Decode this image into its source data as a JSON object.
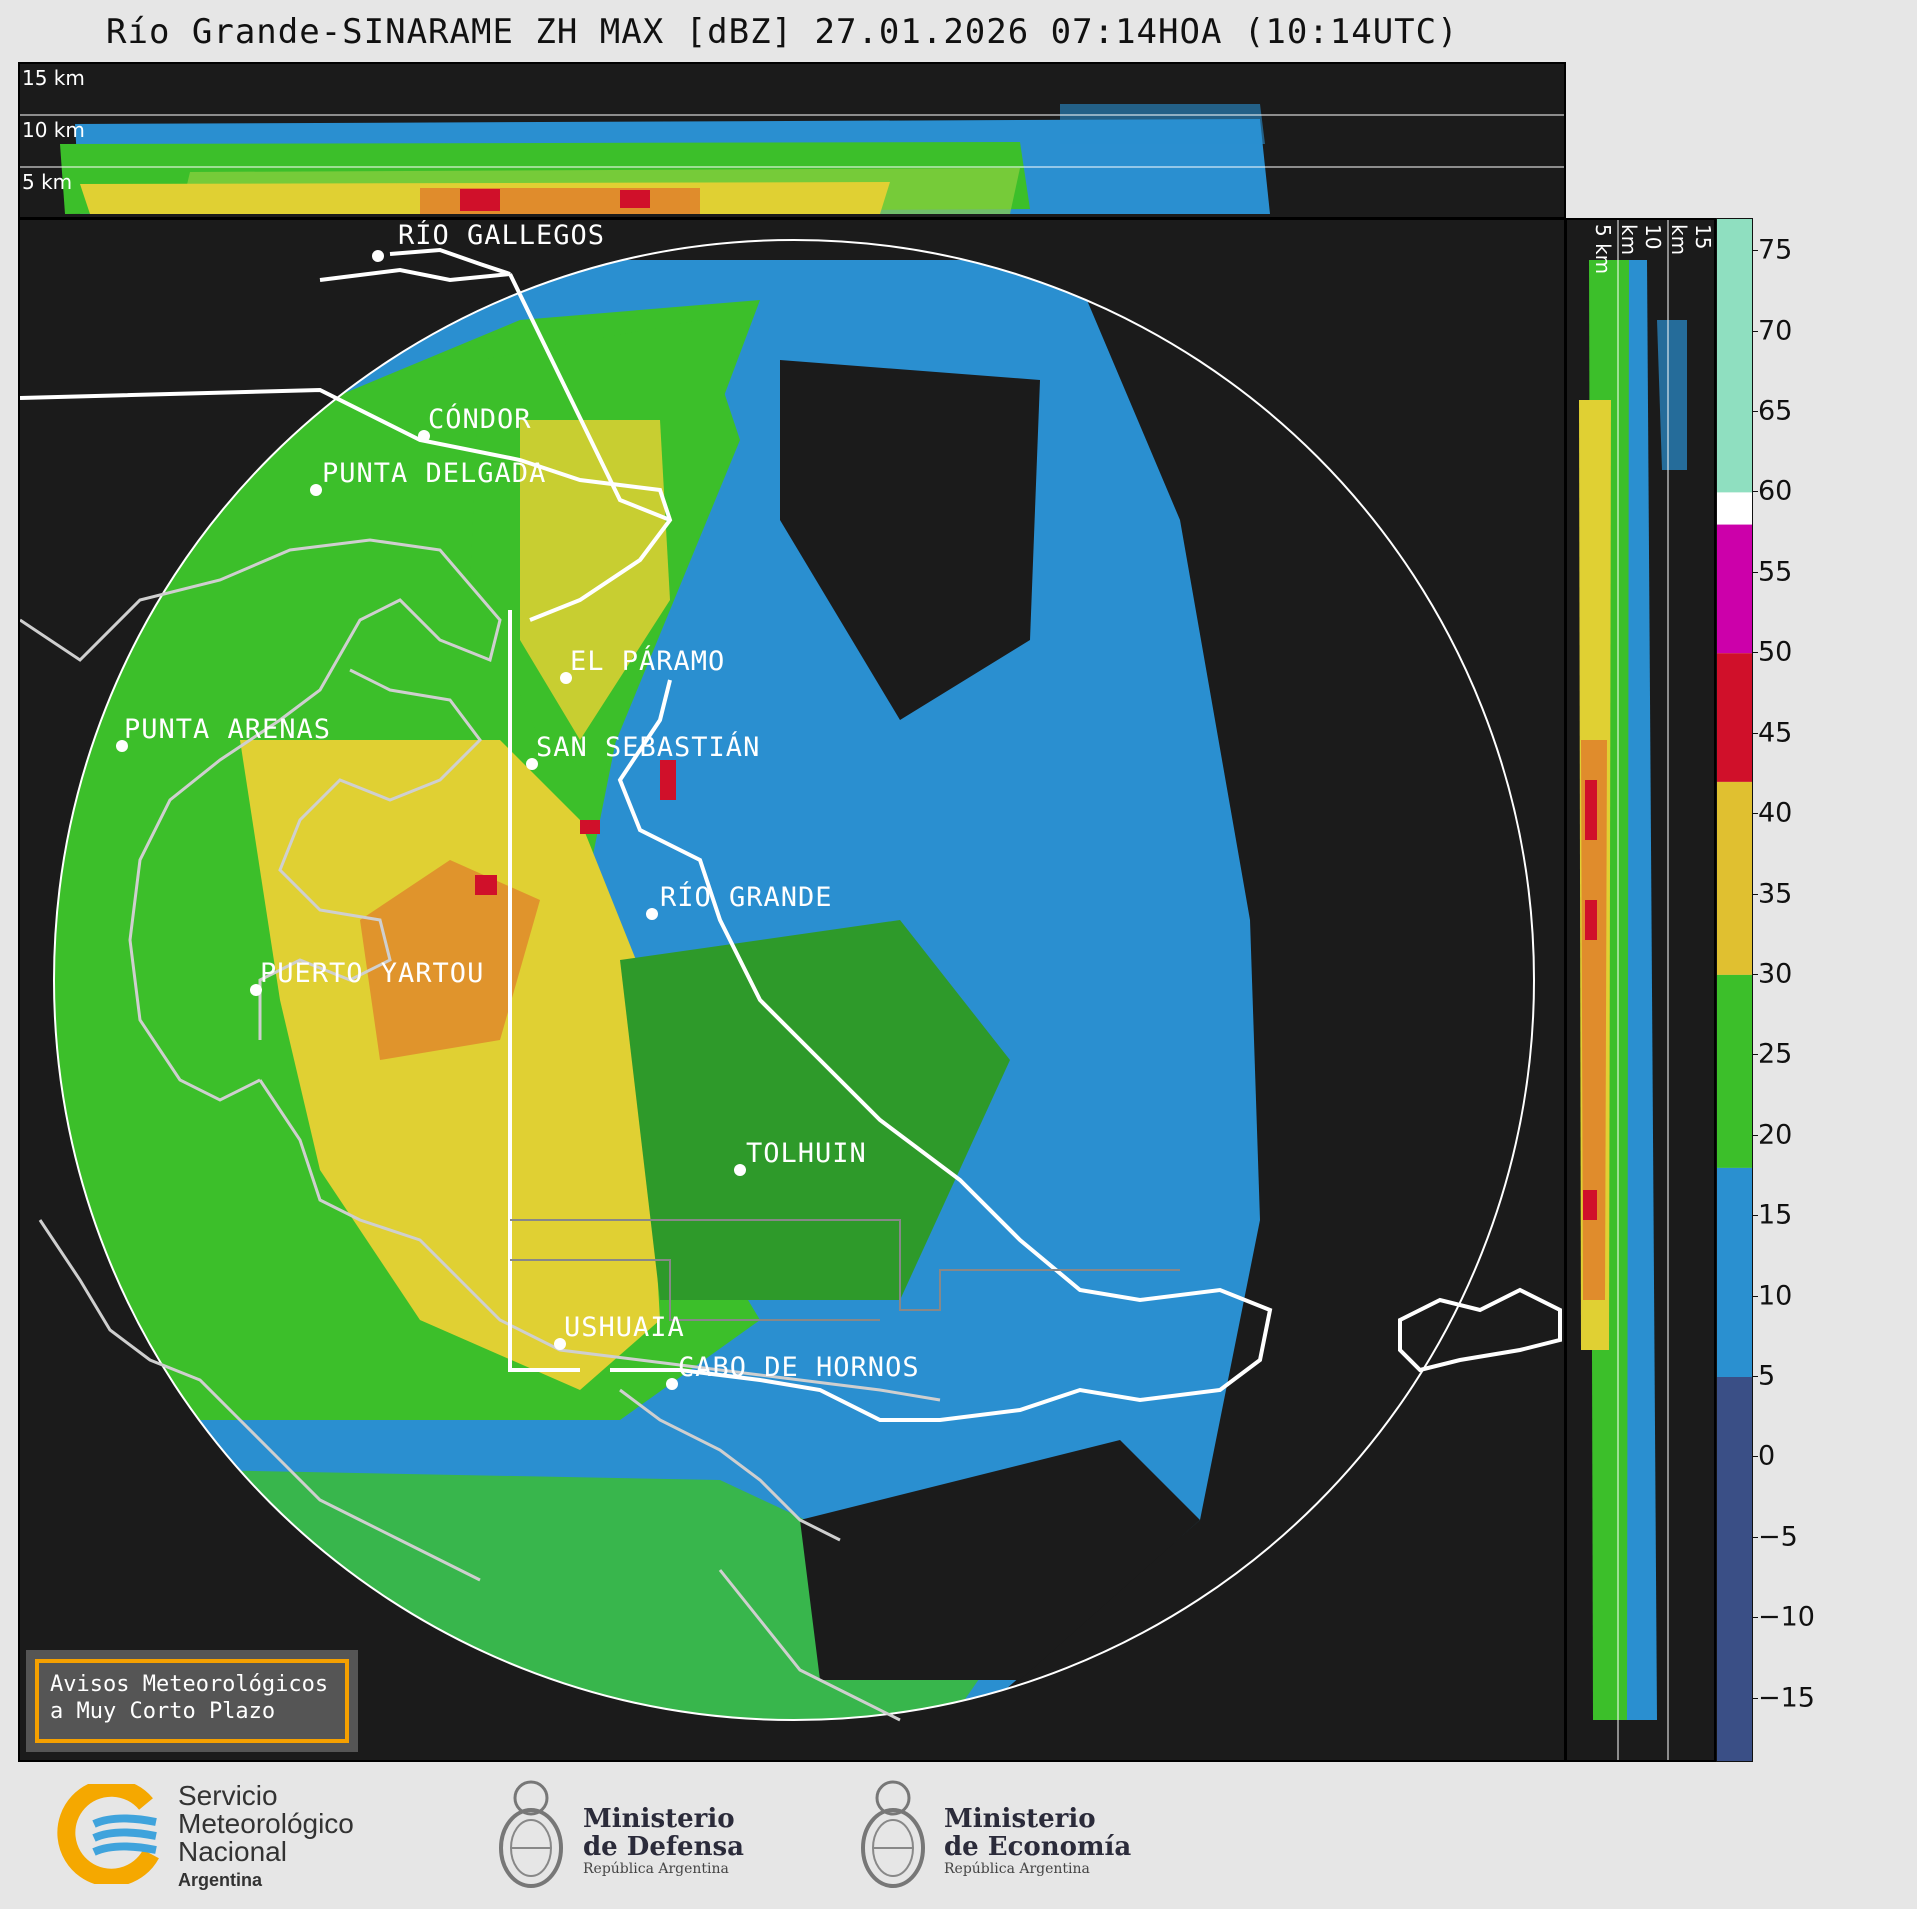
{
  "title": "Río Grande-SINARAME ZH MAX [dBZ] 27.01.2026 07:14HOA (10:14UTC)",
  "top_profile": {
    "levels": [
      "15 km",
      "10 km",
      "5 km"
    ]
  },
  "right_profile": {
    "levels": [
      "5 km",
      "10 km",
      "15 km"
    ]
  },
  "map": {
    "places": [
      {
        "name": "RÍO GALLEGOS"
      },
      {
        "name": "CÓNDOR"
      },
      {
        "name": "PUNTA DELGADA"
      },
      {
        "name": "EL PÁRAMO"
      },
      {
        "name": "PUNTA ARENAS"
      },
      {
        "name": "SAN SEBASTIÁN"
      },
      {
        "name": "RÍO GRANDE"
      },
      {
        "name": "PUERTO YARTOU"
      },
      {
        "name": "TOLHUIN"
      },
      {
        "name": "USHUAIA"
      },
      {
        "name": "CABO DE HORNOS"
      }
    ]
  },
  "colorbar": {
    "unit": "dBZ",
    "ticks": [
      "75",
      "70",
      "65",
      "60",
      "55",
      "50",
      "45",
      "40",
      "35",
      "30",
      "25",
      "20",
      "15",
      "10",
      "5",
      "0",
      "−5",
      "−10",
      "−15"
    ],
    "stops": [
      {
        "from": 60,
        "to": 77,
        "color": "#8fdfc0"
      },
      {
        "from": 58,
        "to": 60,
        "color": "#ffffff"
      },
      {
        "from": 50,
        "to": 58,
        "color": "#cc00aa"
      },
      {
        "from": 42,
        "to": 50,
        "color": "#d0102a"
      },
      {
        "from": 30,
        "to": 42,
        "color": "#e0c030"
      },
      {
        "from": 18,
        "to": 30,
        "color": "#3cbf2a"
      },
      {
        "from": 5,
        "to": 18,
        "color": "#2a90d0"
      },
      {
        "from": -19,
        "to": 5,
        "color": "#3a4f86"
      }
    ]
  },
  "notice": {
    "line1": "Avisos Meteorológicos",
    "line2": "a Muy Corto Plazo"
  },
  "logos": {
    "smn": {
      "line1": "Servicio",
      "line2": "Meteorológico",
      "line3": "Nacional",
      "line4": "Argentina"
    },
    "defensa": {
      "line1": "Ministerio",
      "line2": "de Defensa",
      "line3": "República Argentina"
    },
    "economia": {
      "line1": "Ministerio",
      "line2": "de Economía",
      "line3": "República Argentina"
    }
  }
}
